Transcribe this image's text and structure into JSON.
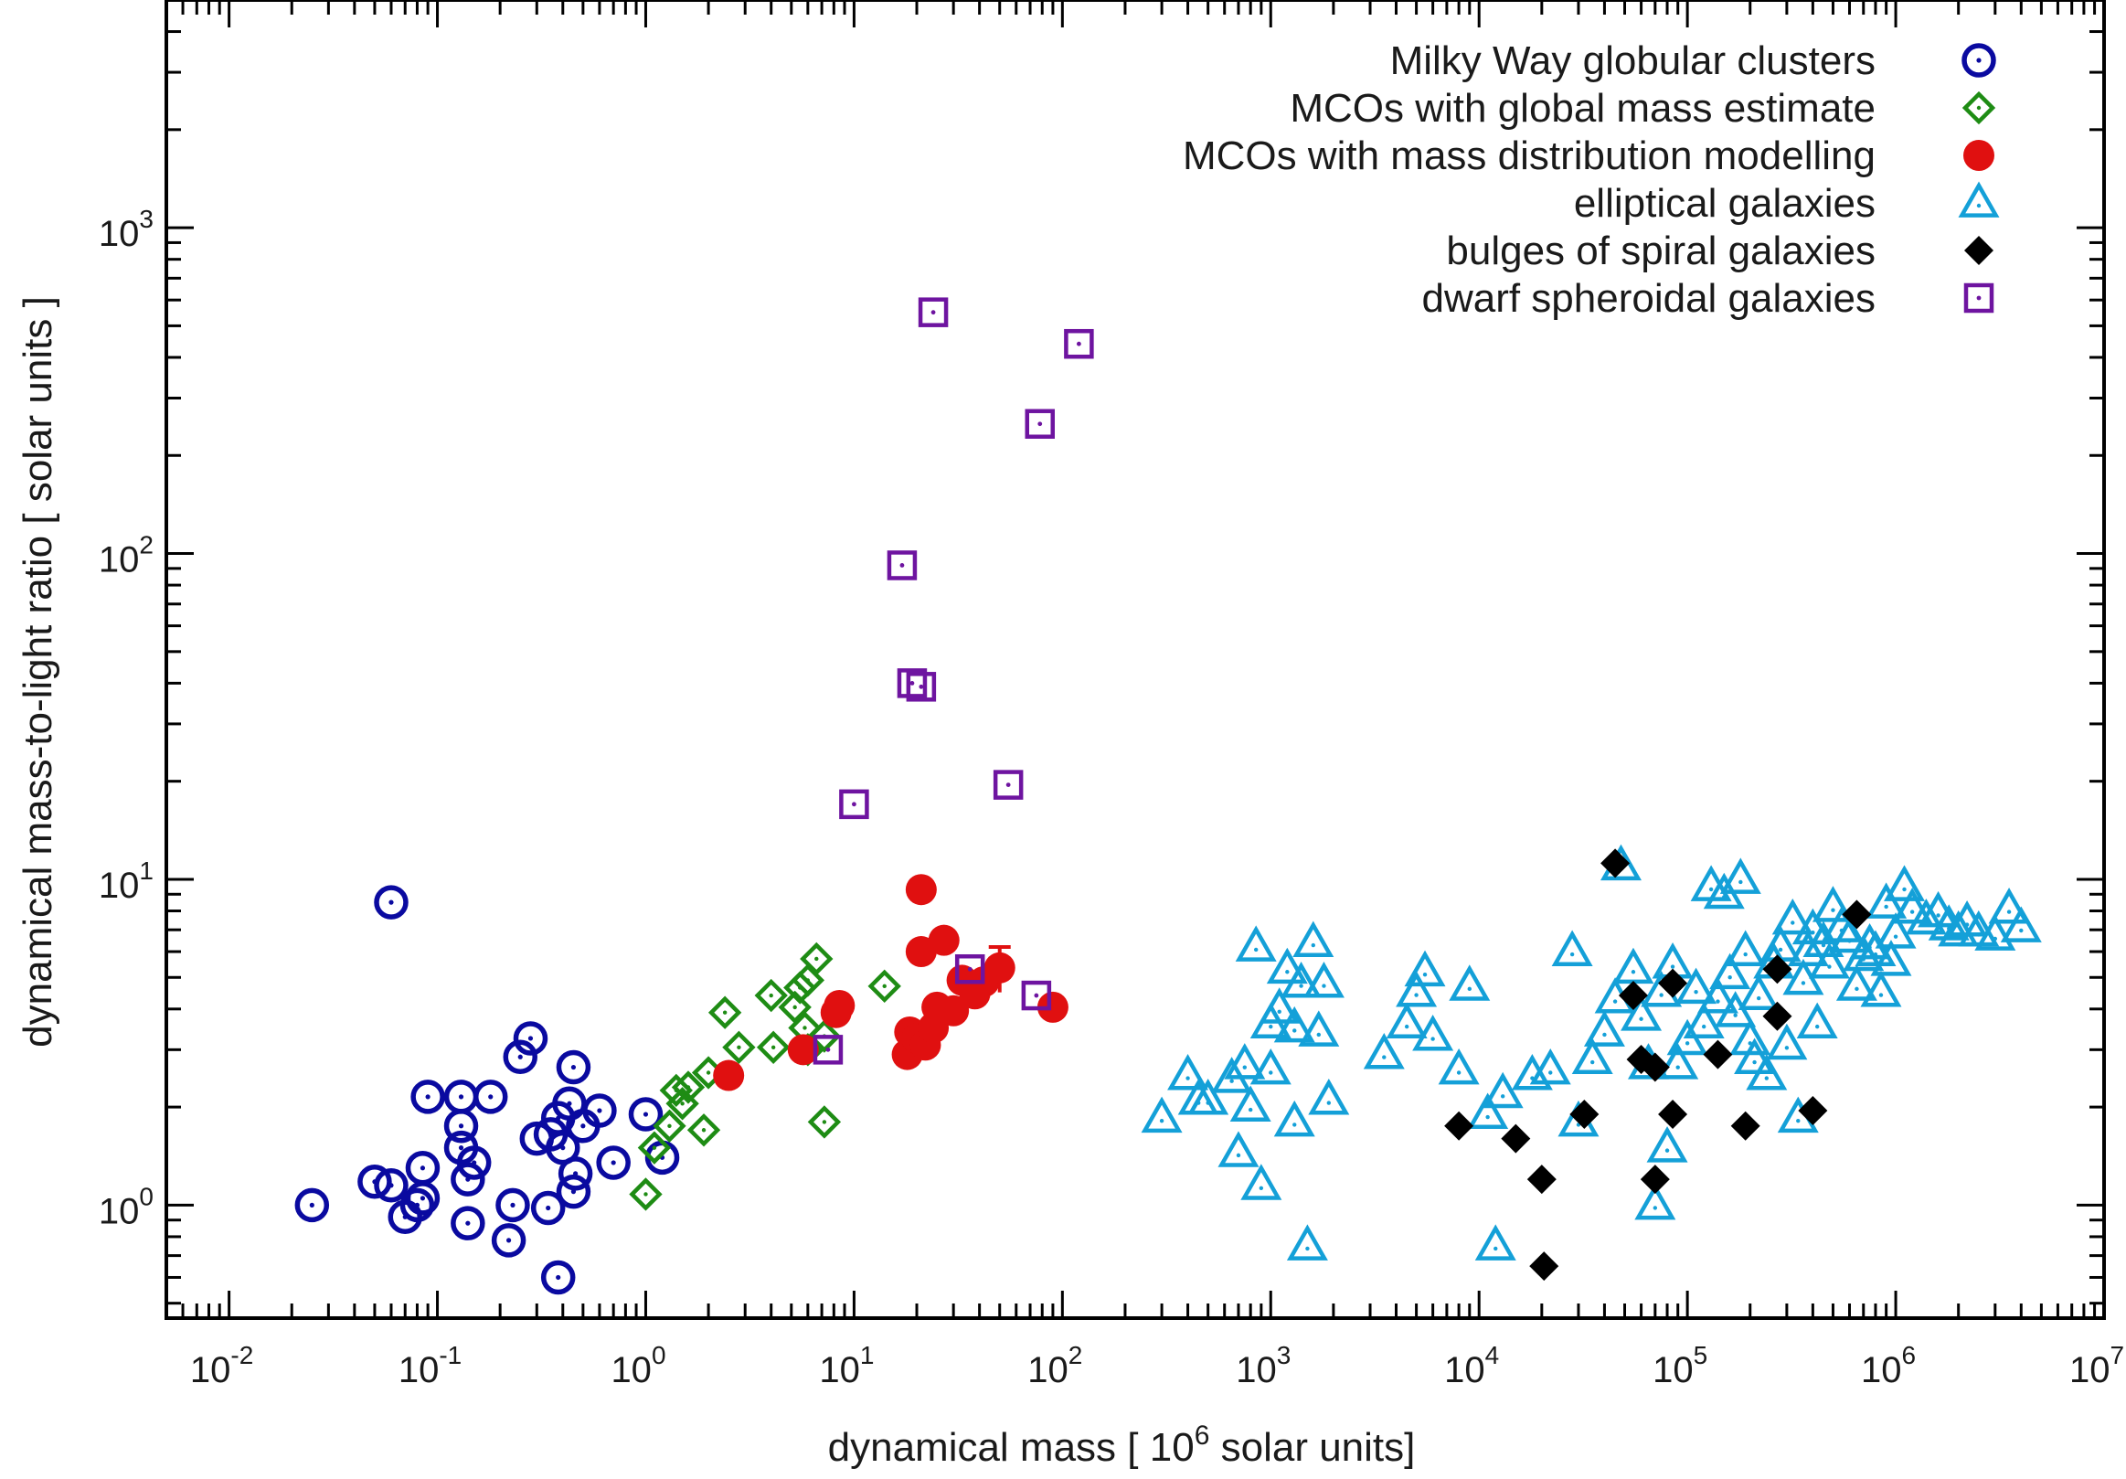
{
  "chart_data": {
    "type": "scatter",
    "xlabel": "dynamical mass   [ 10",
    "xlabel_sup": "6",
    "xlabel_suffix": " solar units]",
    "ylabel": "dynamical mass-to-light ratio   [ solar units ]",
    "x_scale": "log",
    "y_scale": "log",
    "xlim": [
      0.005,
      10000000
    ],
    "ylim": [
      0.45,
      5000
    ],
    "x_ticks": [
      {
        "base": "10",
        "exp": "-2",
        "value": 0.01
      },
      {
        "base": "10",
        "exp": "-1",
        "value": 0.1
      },
      {
        "base": "10",
        "exp": "0",
        "value": 1
      },
      {
        "base": "10",
        "exp": "1",
        "value": 10
      },
      {
        "base": "10",
        "exp": "2",
        "value": 100
      },
      {
        "base": "10",
        "exp": "3",
        "value": 1000
      },
      {
        "base": "10",
        "exp": "4",
        "value": 10000
      },
      {
        "base": "10",
        "exp": "5",
        "value": 100000
      },
      {
        "base": "10",
        "exp": "6",
        "value": 1000000
      },
      {
        "base": "10",
        "exp": "7",
        "value": 10000000
      }
    ],
    "y_ticks": [
      {
        "base": "10",
        "exp": "0",
        "value": 1
      },
      {
        "base": "10",
        "exp": "1",
        "value": 10
      },
      {
        "base": "10",
        "exp": "2",
        "value": 100
      },
      {
        "base": "10",
        "exp": "3",
        "value": 1000
      }
    ],
    "grid": false,
    "legend_position": "top-right",
    "series": [
      {
        "name": "Milky Way globular clusters",
        "marker": "circle-dot",
        "color": "#0a0aa0",
        "points": [
          [
            0.025,
            1.0
          ],
          [
            0.06,
            8.5
          ],
          [
            0.05,
            1.18
          ],
          [
            0.06,
            1.15
          ],
          [
            0.07,
            0.92
          ],
          [
            0.08,
            1.0
          ],
          [
            0.085,
            1.05
          ],
          [
            0.09,
            2.15
          ],
          [
            0.085,
            1.3
          ],
          [
            0.13,
            2.15
          ],
          [
            0.13,
            1.75
          ],
          [
            0.13,
            1.5
          ],
          [
            0.14,
            1.2
          ],
          [
            0.15,
            1.35
          ],
          [
            0.14,
            0.88
          ],
          [
            0.18,
            2.15
          ],
          [
            0.23,
            1.0
          ],
          [
            0.22,
            0.78
          ],
          [
            0.25,
            2.85
          ],
          [
            0.28,
            3.25
          ],
          [
            0.3,
            1.6
          ],
          [
            0.34,
            0.98
          ],
          [
            0.35,
            1.65
          ],
          [
            0.38,
            1.85
          ],
          [
            0.4,
            1.5
          ],
          [
            0.43,
            2.05
          ],
          [
            0.46,
            1.25
          ],
          [
            0.45,
            2.65
          ],
          [
            0.5,
            1.75
          ],
          [
            0.6,
            1.95
          ],
          [
            0.7,
            1.35
          ],
          [
            0.38,
            0.6
          ],
          [
            1.0,
            1.9
          ],
          [
            1.2,
            1.4
          ],
          [
            0.45,
            1.1
          ]
        ]
      },
      {
        "name": "MCOs with global mass estimate",
        "marker": "diamond-dot",
        "color": "#1e8c14",
        "points": [
          [
            1.0,
            1.08
          ],
          [
            1.1,
            1.5
          ],
          [
            1.3,
            1.75
          ],
          [
            1.4,
            2.25
          ],
          [
            1.5,
            2.05
          ],
          [
            1.6,
            2.3
          ],
          [
            1.9,
            1.7
          ],
          [
            2.0,
            2.55
          ],
          [
            2.4,
            3.9
          ],
          [
            2.8,
            3.05
          ],
          [
            4.0,
            4.4
          ],
          [
            4.1,
            3.05
          ],
          [
            5.2,
            4.05
          ],
          [
            5.5,
            4.65
          ],
          [
            6.0,
            4.9
          ],
          [
            5.8,
            3.5
          ],
          [
            6.6,
            5.7
          ],
          [
            7.2,
            3.3
          ],
          [
            7.2,
            1.8
          ],
          [
            14.0,
            4.7
          ],
          [
            6.0,
            3.0
          ]
        ]
      },
      {
        "name": "MCOs with mass distribution modelling",
        "marker": "filled-circle",
        "color": "#e01010",
        "points": [
          [
            2.5,
            2.5
          ],
          [
            5.7,
            3.0
          ],
          [
            8.2,
            3.9
          ],
          [
            8.5,
            4.1
          ],
          [
            18.0,
            2.9
          ],
          [
            18.5,
            3.4
          ],
          [
            20.0,
            3.25
          ],
          [
            21.0,
            9.3
          ],
          [
            21.0,
            6.0
          ],
          [
            22.0,
            3.1
          ],
          [
            24.0,
            3.5
          ],
          [
            25.0,
            4.05
          ],
          [
            27.0,
            6.5
          ],
          [
            30.0,
            3.95
          ],
          [
            33.0,
            4.9
          ],
          [
            38.0,
            4.45
          ],
          [
            42.0,
            4.85
          ],
          [
            50.0,
            5.35
          ],
          [
            90.0,
            4.05
          ]
        ]
      },
      {
        "name": "elliptical galaxies",
        "marker": "triangle-dot",
        "color": "#14a0d8",
        "points": [
          [
            300,
            1.85
          ],
          [
            400,
            2.5
          ],
          [
            450,
            2.1
          ],
          [
            500,
            2.1
          ],
          [
            650,
            2.45
          ],
          [
            700,
            1.45
          ],
          [
            750,
            2.7
          ],
          [
            800,
            2.0
          ],
          [
            850,
            6.2
          ],
          [
            900,
            1.15
          ],
          [
            1000,
            2.6
          ],
          [
            1000,
            3.6
          ],
          [
            1100,
            4.0
          ],
          [
            1200,
            5.3
          ],
          [
            1300,
            1.8
          ],
          [
            1300,
            3.5
          ],
          [
            1400,
            4.8
          ],
          [
            1500,
            0.75
          ],
          [
            1600,
            6.4
          ],
          [
            1700,
            3.4
          ],
          [
            1800,
            4.8
          ],
          [
            1900,
            2.1
          ],
          [
            3500,
            2.9
          ],
          [
            4500,
            3.6
          ],
          [
            5000,
            4.5
          ],
          [
            5500,
            5.2
          ],
          [
            6000,
            3.3
          ],
          [
            8000,
            2.6
          ],
          [
            9000,
            4.7
          ],
          [
            11000,
            1.9
          ],
          [
            12000,
            0.75
          ],
          [
            13000,
            2.2
          ],
          [
            18000,
            2.5
          ],
          [
            22000,
            2.6
          ],
          [
            28000,
            6.0
          ],
          [
            30000,
            1.8
          ],
          [
            35000,
            2.8
          ],
          [
            40000,
            3.4
          ],
          [
            45000,
            4.3
          ],
          [
            48000,
            11.0
          ],
          [
            55000,
            5.3
          ],
          [
            60000,
            3.8
          ],
          [
            65000,
            2.7
          ],
          [
            70000,
            1.0
          ],
          [
            75000,
            4.5
          ],
          [
            80000,
            1.5
          ],
          [
            85000,
            5.5
          ],
          [
            90000,
            2.7
          ],
          [
            100000,
            3.2
          ],
          [
            110000,
            4.6
          ],
          [
            120000,
            3.6
          ],
          [
            130000,
            9.5
          ],
          [
            140000,
            4.3
          ],
          [
            150000,
            9.0
          ],
          [
            160000,
            5.1
          ],
          [
            170000,
            3.9
          ],
          [
            180000,
            10.0
          ],
          [
            190000,
            6.0
          ],
          [
            200000,
            3.2
          ],
          [
            210000,
            2.8
          ],
          [
            220000,
            4.4
          ],
          [
            240000,
            2.5
          ],
          [
            260000,
            5.5
          ],
          [
            280000,
            6.2
          ],
          [
            300000,
            3.1
          ],
          [
            320000,
            7.5
          ],
          [
            340000,
            1.85
          ],
          [
            360000,
            4.9
          ],
          [
            380000,
            6.0
          ],
          [
            400000,
            7.0
          ],
          [
            420000,
            3.6
          ],
          [
            450000,
            6.4
          ],
          [
            480000,
            5.5
          ],
          [
            500000,
            8.2
          ],
          [
            550000,
            7.1
          ],
          [
            600000,
            6.6
          ],
          [
            650000,
            4.7
          ],
          [
            700000,
            5.8
          ],
          [
            750000,
            6.3
          ],
          [
            800000,
            6.0
          ],
          [
            850000,
            4.5
          ],
          [
            900000,
            8.4
          ],
          [
            950000,
            5.6
          ],
          [
            1000000,
            6.8
          ],
          [
            1100000,
            9.5
          ],
          [
            1200000,
            8.1
          ],
          [
            1400000,
            7.5
          ],
          [
            1600000,
            7.9
          ],
          [
            1800000,
            7.2
          ],
          [
            2000000,
            6.9
          ],
          [
            2200000,
            7.4
          ],
          [
            2500000,
            6.9
          ],
          [
            3000000,
            6.7
          ],
          [
            3500000,
            8.1
          ],
          [
            4000000,
            7.1
          ]
        ]
      },
      {
        "name": "bulges of spiral galaxies",
        "marker": "filled-diamond",
        "color": "#000000",
        "points": [
          [
            8000,
            1.75
          ],
          [
            15000,
            1.6
          ],
          [
            20000,
            1.2
          ],
          [
            20500,
            0.65
          ],
          [
            32000,
            1.9
          ],
          [
            45000,
            11.2
          ],
          [
            55000,
            4.4
          ],
          [
            60000,
            2.8
          ],
          [
            70000,
            2.65
          ],
          [
            70000,
            1.2
          ],
          [
            85000,
            4.8
          ],
          [
            85000,
            1.9
          ],
          [
            140000,
            2.9
          ],
          [
            190000,
            1.75
          ],
          [
            270000,
            5.3
          ],
          [
            270000,
            3.8
          ],
          [
            400000,
            1.95
          ],
          [
            650000,
            7.8
          ]
        ]
      },
      {
        "name": "dwarf spheroidal galaxies",
        "marker": "square-dot",
        "color": "#6e14a0",
        "points": [
          [
            7.5,
            3.0
          ],
          [
            10.0,
            17.0
          ],
          [
            17.0,
            92.0
          ],
          [
            19.0,
            40.0
          ],
          [
            21.0,
            39.0
          ],
          [
            24.0,
            550.0
          ],
          [
            36.0,
            5.3
          ],
          [
            55.0,
            19.5
          ],
          [
            75.0,
            4.4
          ],
          [
            78.0,
            250.0
          ],
          [
            120.0,
            440.0
          ]
        ]
      }
    ],
    "error_bars": [
      {
        "series": "MCOs with mass distribution modelling",
        "x": 50.0,
        "y_low": 4.5,
        "y_high": 6.2
      }
    ]
  }
}
